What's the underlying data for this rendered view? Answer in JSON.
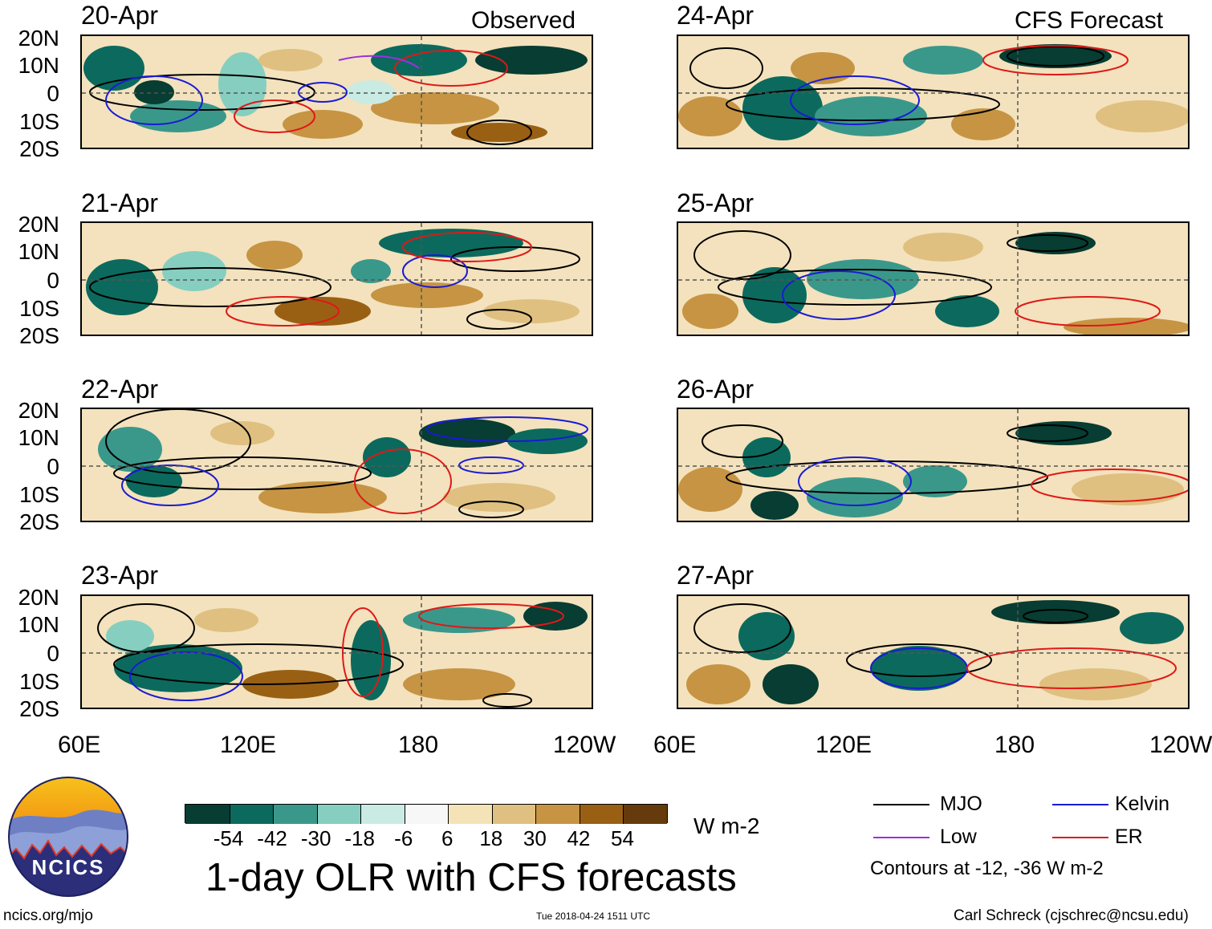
{
  "titles": {
    "observed": "Observed",
    "forecast": "CFS Forecast"
  },
  "panels": {
    "observed": [
      "20-Apr",
      "21-Apr",
      "22-Apr",
      "23-Apr"
    ],
    "forecast": [
      "24-Apr",
      "25-Apr",
      "26-Apr",
      "27-Apr"
    ]
  },
  "lat_labels": [
    "20N",
    "10N",
    "0",
    "10S",
    "20S"
  ],
  "lon_labels": [
    "60E",
    "120E",
    "180",
    "120W"
  ],
  "colorbar": {
    "colors": [
      "#073d32",
      "#0b6a5d",
      "#3a988b",
      "#86cfc0",
      "#c9ebe3",
      "#f7f7f7",
      "#f5e3b8",
      "#dfc080",
      "#c69443",
      "#996014",
      "#653a0c"
    ],
    "labels": [
      "-54",
      "-42",
      "-30",
      "-18",
      "-6",
      "6",
      "18",
      "30",
      "42",
      "54"
    ],
    "units": "W m-2"
  },
  "main_title": "1-day OLR with CFS forecasts",
  "legend": {
    "items": [
      {
        "label": "MJO",
        "color": "#000000"
      },
      {
        "label": "Kelvin",
        "color": "#1a1ad6"
      },
      {
        "label": "Low",
        "color": "#9b30e0"
      },
      {
        "label": "ER",
        "color": "#e01818"
      }
    ],
    "note": "Contours at -12, -36 W m-2"
  },
  "logo": {
    "text": "NCICS"
  },
  "footer": {
    "left": "ncics.org/mjo",
    "center": "Tue 2018-04-24 1511 UTC",
    "right": "Carl Schreck (cjschrec@ncsu.edu)"
  }
}
